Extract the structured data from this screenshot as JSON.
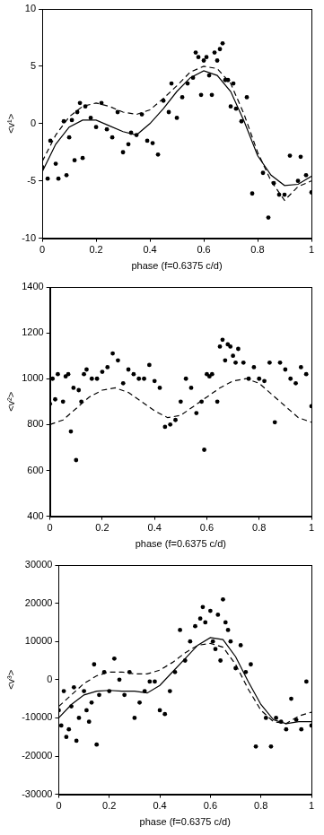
{
  "chart_data": [
    {
      "type": "scatter",
      "xlabel": "phase (f=0.6375 c/d)",
      "ylabel": "<v¹>",
      "xlim": [
        0,
        1
      ],
      "xticks": [
        0,
        0.2,
        0.4,
        0.6,
        0.8,
        1
      ],
      "ylim": [
        -10,
        10
      ],
      "yticks": [
        -10,
        -5,
        0,
        5,
        10
      ],
      "grid": false,
      "series": [
        {
          "type": "scatter",
          "marker": "circle",
          "color": "#000000",
          "x": [
            0,
            0.02,
            0.03,
            0.05,
            0.06,
            0.08,
            0.09,
            0.1,
            0.11,
            0.12,
            0.13,
            0.14,
            0.15,
            0.16,
            0.18,
            0.2,
            0.22,
            0.24,
            0.26,
            0.28,
            0.3,
            0.32,
            0.33,
            0.35,
            0.37,
            0.39,
            0.41,
            0.43,
            0.45,
            0.47,
            0.48,
            0.5,
            0.52,
            0.54,
            0.56,
            0.57,
            0.58,
            0.59,
            0.6,
            0.61,
            0.62,
            0.63,
            0.64,
            0.65,
            0.66,
            0.67,
            0.68,
            0.69,
            0.7,
            0.71,
            0.72,
            0.74,
            0.76,
            0.78,
            0.82,
            0.84,
            0.86,
            0.88,
            0.9,
            0.92,
            0.95,
            0.96,
            0.98,
            1.0
          ],
          "values": [
            -3.8,
            -4.8,
            -1.5,
            -3.5,
            -4.8,
            0.2,
            -4.5,
            -1.2,
            0.3,
            -3.2,
            1.0,
            1.8,
            -3.0,
            1.5,
            0.5,
            -0.3,
            1.8,
            -0.5,
            -1.2,
            1.0,
            -2.5,
            -1.8,
            -0.8,
            -1.0,
            0.8,
            -1.5,
            -1.7,
            -2.7,
            2.0,
            1.0,
            3.5,
            0.5,
            2.3,
            3.5,
            4.0,
            6.2,
            5.8,
            2.5,
            5.5,
            5.8,
            4.2,
            2.5,
            6.2,
            5.5,
            6.5,
            7.0,
            3.8,
            3.8,
            1.5,
            3.5,
            1.3,
            0.2,
            2.3,
            -6.1,
            -4.3,
            -8.2,
            -5.2,
            -6.2,
            -6.2,
            -2.8,
            -5.0,
            -2.9,
            -4.5,
            -6.0
          ]
        },
        {
          "type": "line",
          "line_style": "solid",
          "color": "#000000",
          "x": [
            0,
            0.05,
            0.1,
            0.15,
            0.2,
            0.25,
            0.3,
            0.35,
            0.4,
            0.45,
            0.5,
            0.55,
            0.6,
            0.65,
            0.7,
            0.75,
            0.8,
            0.85,
            0.9,
            0.95,
            1.0
          ],
          "values": [
            -4.2,
            -1.8,
            -0.3,
            0.3,
            0.3,
            -0.2,
            -0.7,
            -1.0,
            0.0,
            1.3,
            2.8,
            4.0,
            4.6,
            4.2,
            2.8,
            0.2,
            -2.8,
            -4.5,
            -5.4,
            -5.3,
            -4.6
          ]
        },
        {
          "type": "line",
          "line_style": "dashed",
          "color": "#000000",
          "x": [
            0,
            0.05,
            0.1,
            0.15,
            0.2,
            0.25,
            0.3,
            0.35,
            0.4,
            0.45,
            0.5,
            0.55,
            0.6,
            0.65,
            0.7,
            0.75,
            0.8,
            0.85,
            0.9,
            0.95,
            1.0
          ],
          "values": [
            -3.3,
            -1.0,
            0.6,
            1.5,
            1.8,
            1.5,
            1.0,
            0.8,
            1.2,
            2.2,
            3.3,
            4.5,
            5.0,
            4.8,
            3.5,
            0.8,
            -2.5,
            -5.0,
            -6.7,
            -5.5,
            -5.0
          ]
        }
      ]
    },
    {
      "type": "scatter",
      "xlabel": "phase (f=0.6375 c/d)",
      "ylabel": "<v²>",
      "xlim": [
        0,
        1
      ],
      "xticks": [
        0,
        0.2,
        0.4,
        0.6,
        0.8,
        1
      ],
      "ylim": [
        400,
        1400
      ],
      "yticks": [
        400,
        600,
        800,
        1000,
        1200,
        1400
      ],
      "grid": false,
      "series": [
        {
          "type": "scatter",
          "marker": "circle",
          "color": "#000000",
          "x": [
            0,
            0.01,
            0.02,
            0.03,
            0.05,
            0.06,
            0.07,
            0.08,
            0.09,
            0.1,
            0.11,
            0.12,
            0.13,
            0.14,
            0.16,
            0.18,
            0.2,
            0.22,
            0.24,
            0.26,
            0.28,
            0.3,
            0.32,
            0.34,
            0.36,
            0.38,
            0.4,
            0.42,
            0.44,
            0.46,
            0.48,
            0.5,
            0.52,
            0.54,
            0.56,
            0.58,
            0.59,
            0.6,
            0.61,
            0.62,
            0.64,
            0.65,
            0.66,
            0.67,
            0.68,
            0.69,
            0.7,
            0.71,
            0.72,
            0.74,
            0.76,
            0.78,
            0.8,
            0.82,
            0.84,
            0.86,
            0.88,
            0.9,
            0.92,
            0.94,
            0.96,
            0.98,
            1.0
          ],
          "values": [
            890,
            1000,
            910,
            1020,
            900,
            1010,
            1020,
            770,
            960,
            645,
            950,
            900,
            1020,
            1040,
            1000,
            1000,
            1030,
            1050,
            1110,
            1080,
            980,
            1040,
            1020,
            1000,
            1000,
            1060,
            990,
            960,
            790,
            800,
            820,
            900,
            1000,
            960,
            850,
            900,
            690,
            1020,
            1010,
            1020,
            900,
            1140,
            1170,
            1080,
            1150,
            1140,
            1100,
            1070,
            1130,
            1070,
            1000,
            1050,
            1000,
            990,
            1070,
            810,
            1070,
            1040,
            1000,
            980,
            1050,
            1020,
            880
          ]
        },
        {
          "type": "line",
          "line_style": "dashed",
          "color": "#000000",
          "x": [
            0,
            0.05,
            0.1,
            0.15,
            0.2,
            0.25,
            0.3,
            0.35,
            0.4,
            0.45,
            0.5,
            0.55,
            0.6,
            0.65,
            0.7,
            0.75,
            0.8,
            0.85,
            0.9,
            0.95,
            1.0
          ],
          "values": [
            800,
            820,
            870,
            920,
            950,
            960,
            940,
            900,
            860,
            830,
            840,
            880,
            920,
            960,
            990,
            1000,
            980,
            930,
            880,
            830,
            810
          ]
        }
      ]
    },
    {
      "type": "scatter",
      "xlabel": "phase (f=0.6375 c/d)",
      "ylabel": "<v³>",
      "xlim": [
        0,
        1
      ],
      "xticks": [
        0,
        0.2,
        0.4,
        0.6,
        0.8,
        1
      ],
      "ylim": [
        -30000,
        30000
      ],
      "yticks": [
        -30000,
        -20000,
        -10000,
        0,
        10000,
        20000,
        30000
      ],
      "grid": false,
      "series": [
        {
          "type": "scatter",
          "marker": "circle",
          "color": "#000000",
          "x": [
            0,
            0.01,
            0.02,
            0.03,
            0.04,
            0.05,
            0.06,
            0.07,
            0.08,
            0.1,
            0.11,
            0.12,
            0.13,
            0.14,
            0.15,
            0.16,
            0.18,
            0.2,
            0.22,
            0.24,
            0.26,
            0.28,
            0.3,
            0.32,
            0.34,
            0.36,
            0.38,
            0.4,
            0.42,
            0.44,
            0.46,
            0.48,
            0.5,
            0.52,
            0.54,
            0.56,
            0.57,
            0.58,
            0.6,
            0.61,
            0.62,
            0.63,
            0.64,
            0.65,
            0.66,
            0.67,
            0.68,
            0.7,
            0.72,
            0.74,
            0.76,
            0.78,
            0.82,
            0.84,
            0.86,
            0.88,
            0.9,
            0.92,
            0.94,
            0.96,
            0.98,
            1.0
          ],
          "values": [
            -8000,
            -12000,
            -3000,
            -15000,
            -13000,
            -7000,
            -2000,
            -16000,
            -10000,
            -3000,
            -8000,
            -11000,
            -6000,
            4000,
            -17000,
            -4000,
            2000,
            -3000,
            5500,
            0,
            -4000,
            2000,
            -10000,
            -6000,
            -3000,
            -500,
            -500,
            -8000,
            -9000,
            -3000,
            2000,
            13000,
            5000,
            10000,
            14000,
            16000,
            19000,
            15000,
            18000,
            10000,
            8000,
            17000,
            5000,
            21000,
            15000,
            13000,
            10000,
            3000,
            9000,
            2000,
            4000,
            -17500,
            -10000,
            -17500,
            -10000,
            -11000,
            -13000,
            -5000,
            -10500,
            -13000,
            -500,
            -12000
          ]
        },
        {
          "type": "line",
          "line_style": "solid",
          "color": "#000000",
          "x": [
            0,
            0.05,
            0.1,
            0.15,
            0.2,
            0.25,
            0.3,
            0.35,
            0.4,
            0.45,
            0.5,
            0.55,
            0.6,
            0.65,
            0.7,
            0.75,
            0.8,
            0.85,
            0.9,
            0.95,
            1.0
          ],
          "values": [
            -10000,
            -6500,
            -4000,
            -3000,
            -2800,
            -3000,
            -3000,
            -3500,
            -1500,
            2000,
            5500,
            9000,
            11000,
            10500,
            6000,
            -500,
            -6500,
            -10500,
            -11500,
            -11000,
            -11000
          ]
        },
        {
          "type": "line",
          "line_style": "dashed",
          "color": "#000000",
          "x": [
            0,
            0.05,
            0.1,
            0.15,
            0.2,
            0.25,
            0.3,
            0.35,
            0.4,
            0.45,
            0.5,
            0.55,
            0.6,
            0.65,
            0.7,
            0.75,
            0.8,
            0.85,
            0.9,
            0.95,
            1.0
          ],
          "values": [
            -7000,
            -4000,
            -1000,
            1000,
            2000,
            2000,
            1500,
            1500,
            2500,
            4500,
            7000,
            9000,
            9500,
            8500,
            4000,
            -2500,
            -8000,
            -11000,
            -11500,
            -9500,
            -8500
          ]
        }
      ]
    }
  ]
}
